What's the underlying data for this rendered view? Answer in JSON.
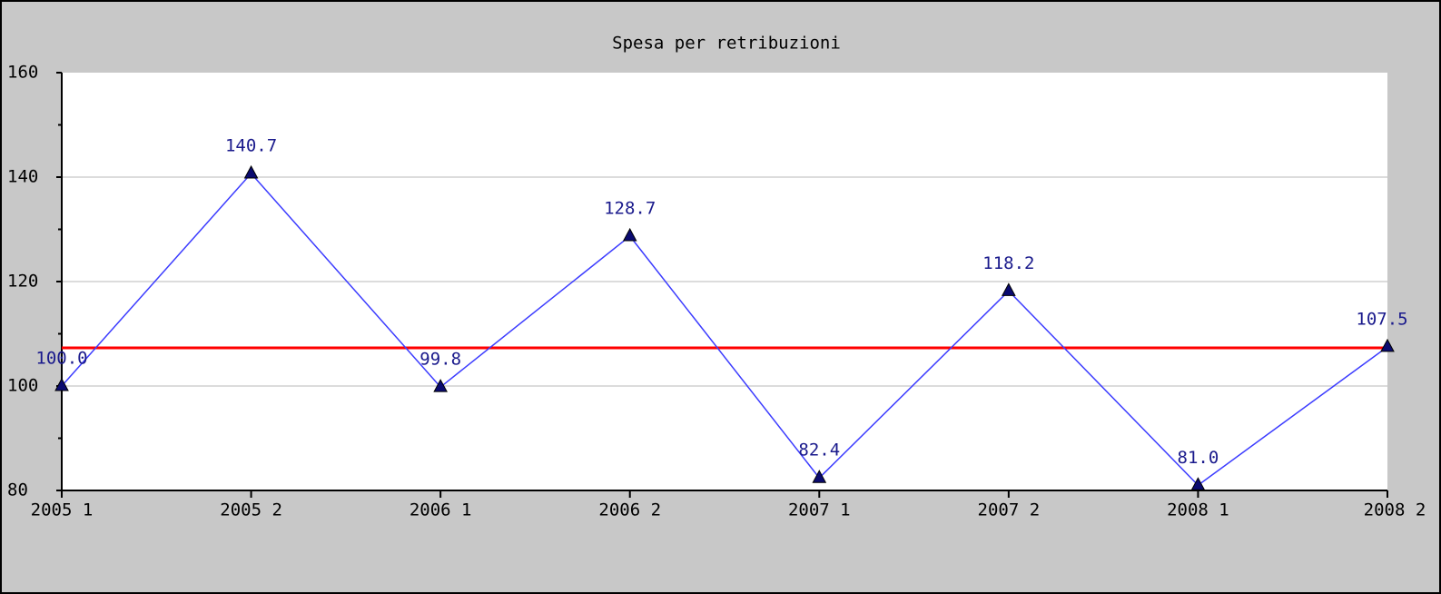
{
  "chart_data": {
    "type": "line",
    "title": "Spesa per retribuzioni",
    "categories": [
      "2005 1",
      "2005 2",
      "2006 1",
      "2006 2",
      "2007 1",
      "2007 2",
      "2008 1",
      "2008 2"
    ],
    "series": [
      {
        "color": "#3c3cff",
        "marker_color": "#0a0a70",
        "values": [
          100,
          140.7,
          99.8,
          128.7,
          82.4,
          118.2,
          81,
          107.5
        ],
        "value_labels": [
          "100.0",
          "140.7",
          "99.8",
          "128.7",
          "82.4",
          "118.2",
          "81.0",
          "107.5"
        ]
      }
    ],
    "reference_line": {
      "value": 107.3,
      "color": "#ff0000"
    },
    "ylim": [
      80,
      160
    ],
    "yticks": [
      80,
      100,
      120,
      140,
      160
    ],
    "yminor_ticks": [
      90,
      110,
      130,
      150
    ],
    "grid": true
  }
}
